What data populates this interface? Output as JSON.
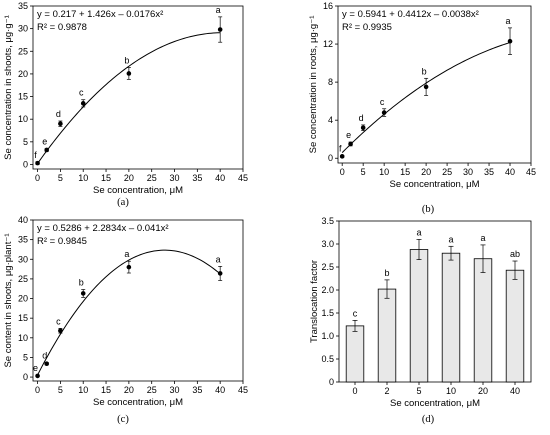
{
  "chart_data": [
    {
      "id": "a",
      "type": "scatter",
      "caption": "(a)",
      "xlabel": "Se concentration, μM",
      "ylabel": "Se concentration in shoots, μg·g⁻¹",
      "xlim": [
        -1,
        45
      ],
      "ylim": [
        -1,
        35
      ],
      "xticks": [
        0,
        5,
        10,
        15,
        20,
        25,
        30,
        35,
        40,
        45
      ],
      "yticks": [
        0,
        5,
        10,
        15,
        20,
        25,
        30,
        35
      ],
      "equation": "y = 0.217 + 1.426x – 0.0176x²",
      "r2": "R² = 0.9878",
      "fit": {
        "c": 0.217,
        "b": 1.426,
        "a": -0.0176
      },
      "points": [
        {
          "x": 0,
          "y": 0.3,
          "err": 0.3,
          "label": "f"
        },
        {
          "x": 2,
          "y": 3.2,
          "err": 0.3,
          "label": "e"
        },
        {
          "x": 5,
          "y": 9.0,
          "err": 0.6,
          "label": "d"
        },
        {
          "x": 10,
          "y": 13.5,
          "err": 0.8,
          "label": "c"
        },
        {
          "x": 20,
          "y": 20.1,
          "err": 1.3,
          "label": "b"
        },
        {
          "x": 40,
          "y": 29.8,
          "err": 2.8,
          "label": "a"
        }
      ]
    },
    {
      "id": "b",
      "type": "scatter",
      "caption": "(b)",
      "xlabel": "Se concentration, μM",
      "ylabel": "Se concentration in roots, μg·g⁻¹",
      "xlim": [
        -1,
        45
      ],
      "ylim": [
        -0.5,
        16
      ],
      "xticks": [
        0,
        5,
        10,
        15,
        20,
        25,
        30,
        35,
        40,
        45
      ],
      "yticks": [
        0,
        4,
        8,
        12,
        16
      ],
      "equation": "y = 0.5941 + 0.4412x – 0.0038x²",
      "r2": "R² = 0.9935",
      "fit": {
        "c": 0.5941,
        "b": 0.4412,
        "a": -0.0038
      },
      "points": [
        {
          "x": 0,
          "y": 0.2,
          "err": 0.1,
          "label": "f"
        },
        {
          "x": 2,
          "y": 1.5,
          "err": 0.2,
          "label": "e"
        },
        {
          "x": 5,
          "y": 3.2,
          "err": 0.3,
          "label": "d"
        },
        {
          "x": 10,
          "y": 4.8,
          "err": 0.4,
          "label": "c"
        },
        {
          "x": 20,
          "y": 7.5,
          "err": 0.9,
          "label": "b"
        },
        {
          "x": 40,
          "y": 12.3,
          "err": 1.4,
          "label": "a"
        }
      ]
    },
    {
      "id": "c",
      "type": "scatter",
      "caption": "(c)",
      "xlabel": "Se concentration, μM",
      "ylabel": "Se content in shoots, μg·plant⁻¹",
      "xlim": [
        -1,
        45
      ],
      "ylim": [
        -1,
        40
      ],
      "xticks": [
        0,
        5,
        10,
        15,
        20,
        25,
        30,
        35,
        40,
        45
      ],
      "yticks": [
        0,
        5,
        10,
        15,
        20,
        25,
        30,
        35,
        40
      ],
      "equation": "y = 0.5286 + 2.2834x – 0.041x²",
      "r2": "R² = 0.9845",
      "fit": {
        "c": 0.5286,
        "b": 2.2834,
        "a": -0.041
      },
      "points": [
        {
          "x": 0,
          "y": 0.3,
          "err": 0.2,
          "label": "e"
        },
        {
          "x": 2,
          "y": 3.4,
          "err": 0.3,
          "label": "d"
        },
        {
          "x": 5,
          "y": 11.8,
          "err": 0.6,
          "label": "c"
        },
        {
          "x": 10,
          "y": 21.3,
          "err": 1.0,
          "label": "b"
        },
        {
          "x": 20,
          "y": 28.0,
          "err": 1.5,
          "label": "a"
        },
        {
          "x": 40,
          "y": 26.4,
          "err": 1.8,
          "label": "a"
        }
      ]
    },
    {
      "id": "d",
      "type": "bar",
      "caption": "(d)",
      "xlabel": "Se concentration, μM",
      "ylabel": "Translocation factor",
      "ylim": [
        0,
        3.5
      ],
      "yticks": [
        0,
        0.5,
        1.0,
        1.5,
        2.0,
        2.5,
        3.0,
        3.5
      ],
      "ytick_labels": [
        "0",
        "0.5",
        "1.0",
        "1.5",
        "2.0",
        "2.5",
        "3.0",
        "3.5"
      ],
      "categories": [
        "0",
        "2",
        "5",
        "10",
        "20",
        "40"
      ],
      "values": [
        1.22,
        2.02,
        2.88,
        2.8,
        2.68,
        2.43
      ],
      "errors": [
        0.12,
        0.2,
        0.22,
        0.15,
        0.3,
        0.2
      ],
      "labels": [
        "c",
        "b",
        "a",
        "a",
        "a",
        "ab"
      ],
      "bar_color": "#e8e8e8"
    }
  ]
}
